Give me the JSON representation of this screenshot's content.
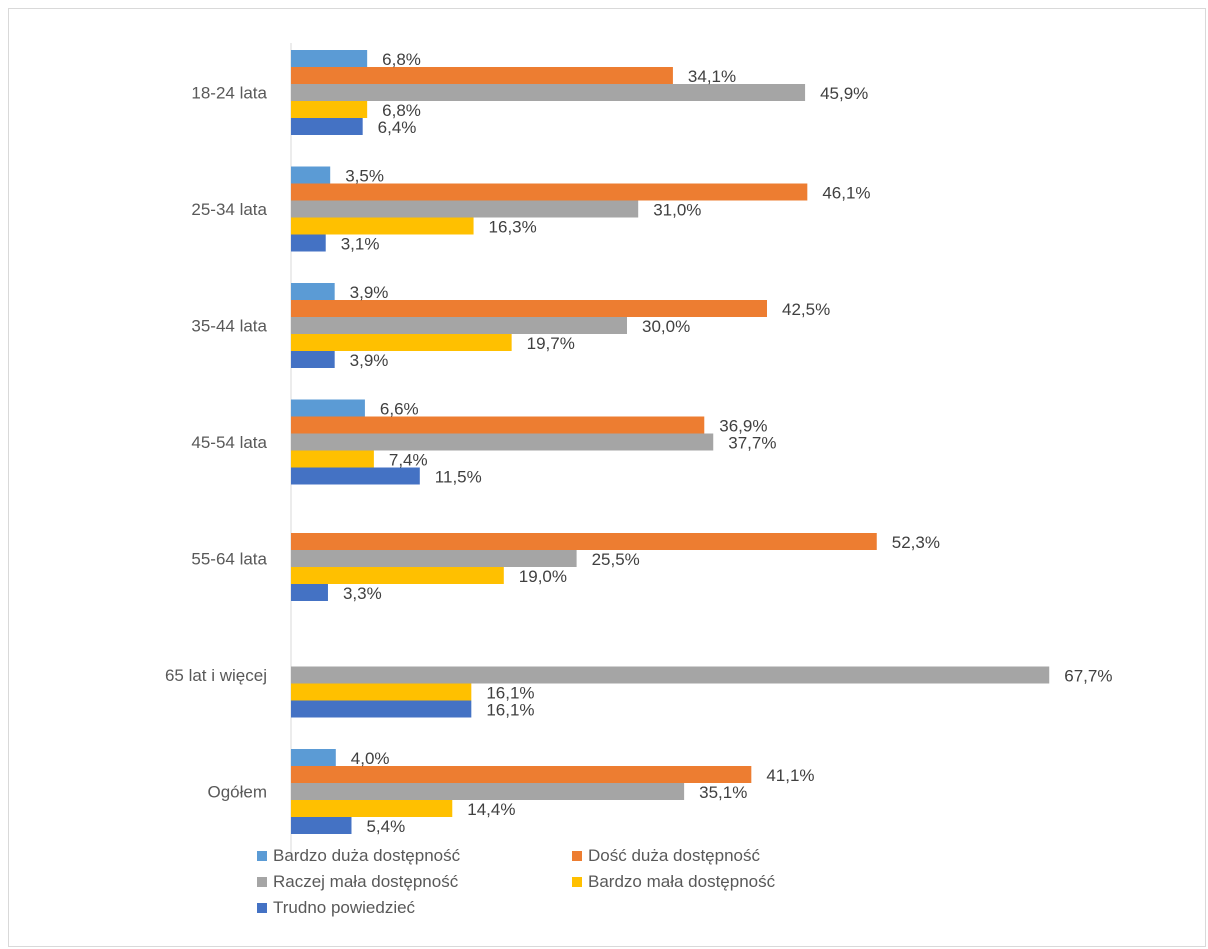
{
  "chart_data": {
    "type": "bar",
    "orientation": "horizontal",
    "title": "",
    "xlabel": "",
    "ylabel": "",
    "xlim": [
      0,
      70
    ],
    "grid": false,
    "legend_position": "bottom-left",
    "categories": [
      "18-24 lata",
      "25-34 lata",
      "35-44 lata",
      "45-54 lata",
      "55-64 lata",
      "65 lat i więcej",
      "Ogółem"
    ],
    "series": [
      {
        "name": "Bardzo duża dostępność",
        "color": "#5B9BD5",
        "values": [
          6.8,
          3.5,
          3.9,
          6.6,
          null,
          null,
          4.0
        ],
        "labels": [
          "6,8%",
          "3,5%",
          "3,9%",
          "6,6%",
          "",
          "",
          "4,0%"
        ]
      },
      {
        "name": "Dość duża dostępność",
        "color": "#ED7D31",
        "values": [
          34.1,
          46.1,
          42.5,
          36.9,
          52.3,
          null,
          41.1
        ],
        "labels": [
          "34,1%",
          "46,1%",
          "42,5%",
          "36,9%",
          "52,3%",
          "",
          "41,1%"
        ]
      },
      {
        "name": "Raczej mała dostępność",
        "color": "#A5A5A5",
        "values": [
          45.9,
          31.0,
          30.0,
          37.7,
          25.5,
          67.7,
          35.1
        ],
        "labels": [
          "45,9%",
          "31,0%",
          "30,0%",
          "37,7%",
          "25,5%",
          "67,7%",
          "35,1%"
        ]
      },
      {
        "name": "Bardzo mała dostępność",
        "color": "#FFC000",
        "values": [
          6.8,
          16.3,
          19.7,
          7.4,
          19.0,
          16.1,
          14.4
        ],
        "labels": [
          "6,8%",
          "16,3%",
          "19,7%",
          "7,4%",
          "19,0%",
          "16,1%",
          "14,4%"
        ]
      },
      {
        "name": "Trudno powiedzieć",
        "color": "#4472C4",
        "values": [
          6.4,
          3.1,
          3.9,
          11.5,
          3.3,
          16.1,
          5.4
        ],
        "labels": [
          "6,4%",
          "3,1%",
          "3,9%",
          "11,5%",
          "3,3%",
          "16,1%",
          "5,4%"
        ]
      }
    ]
  }
}
